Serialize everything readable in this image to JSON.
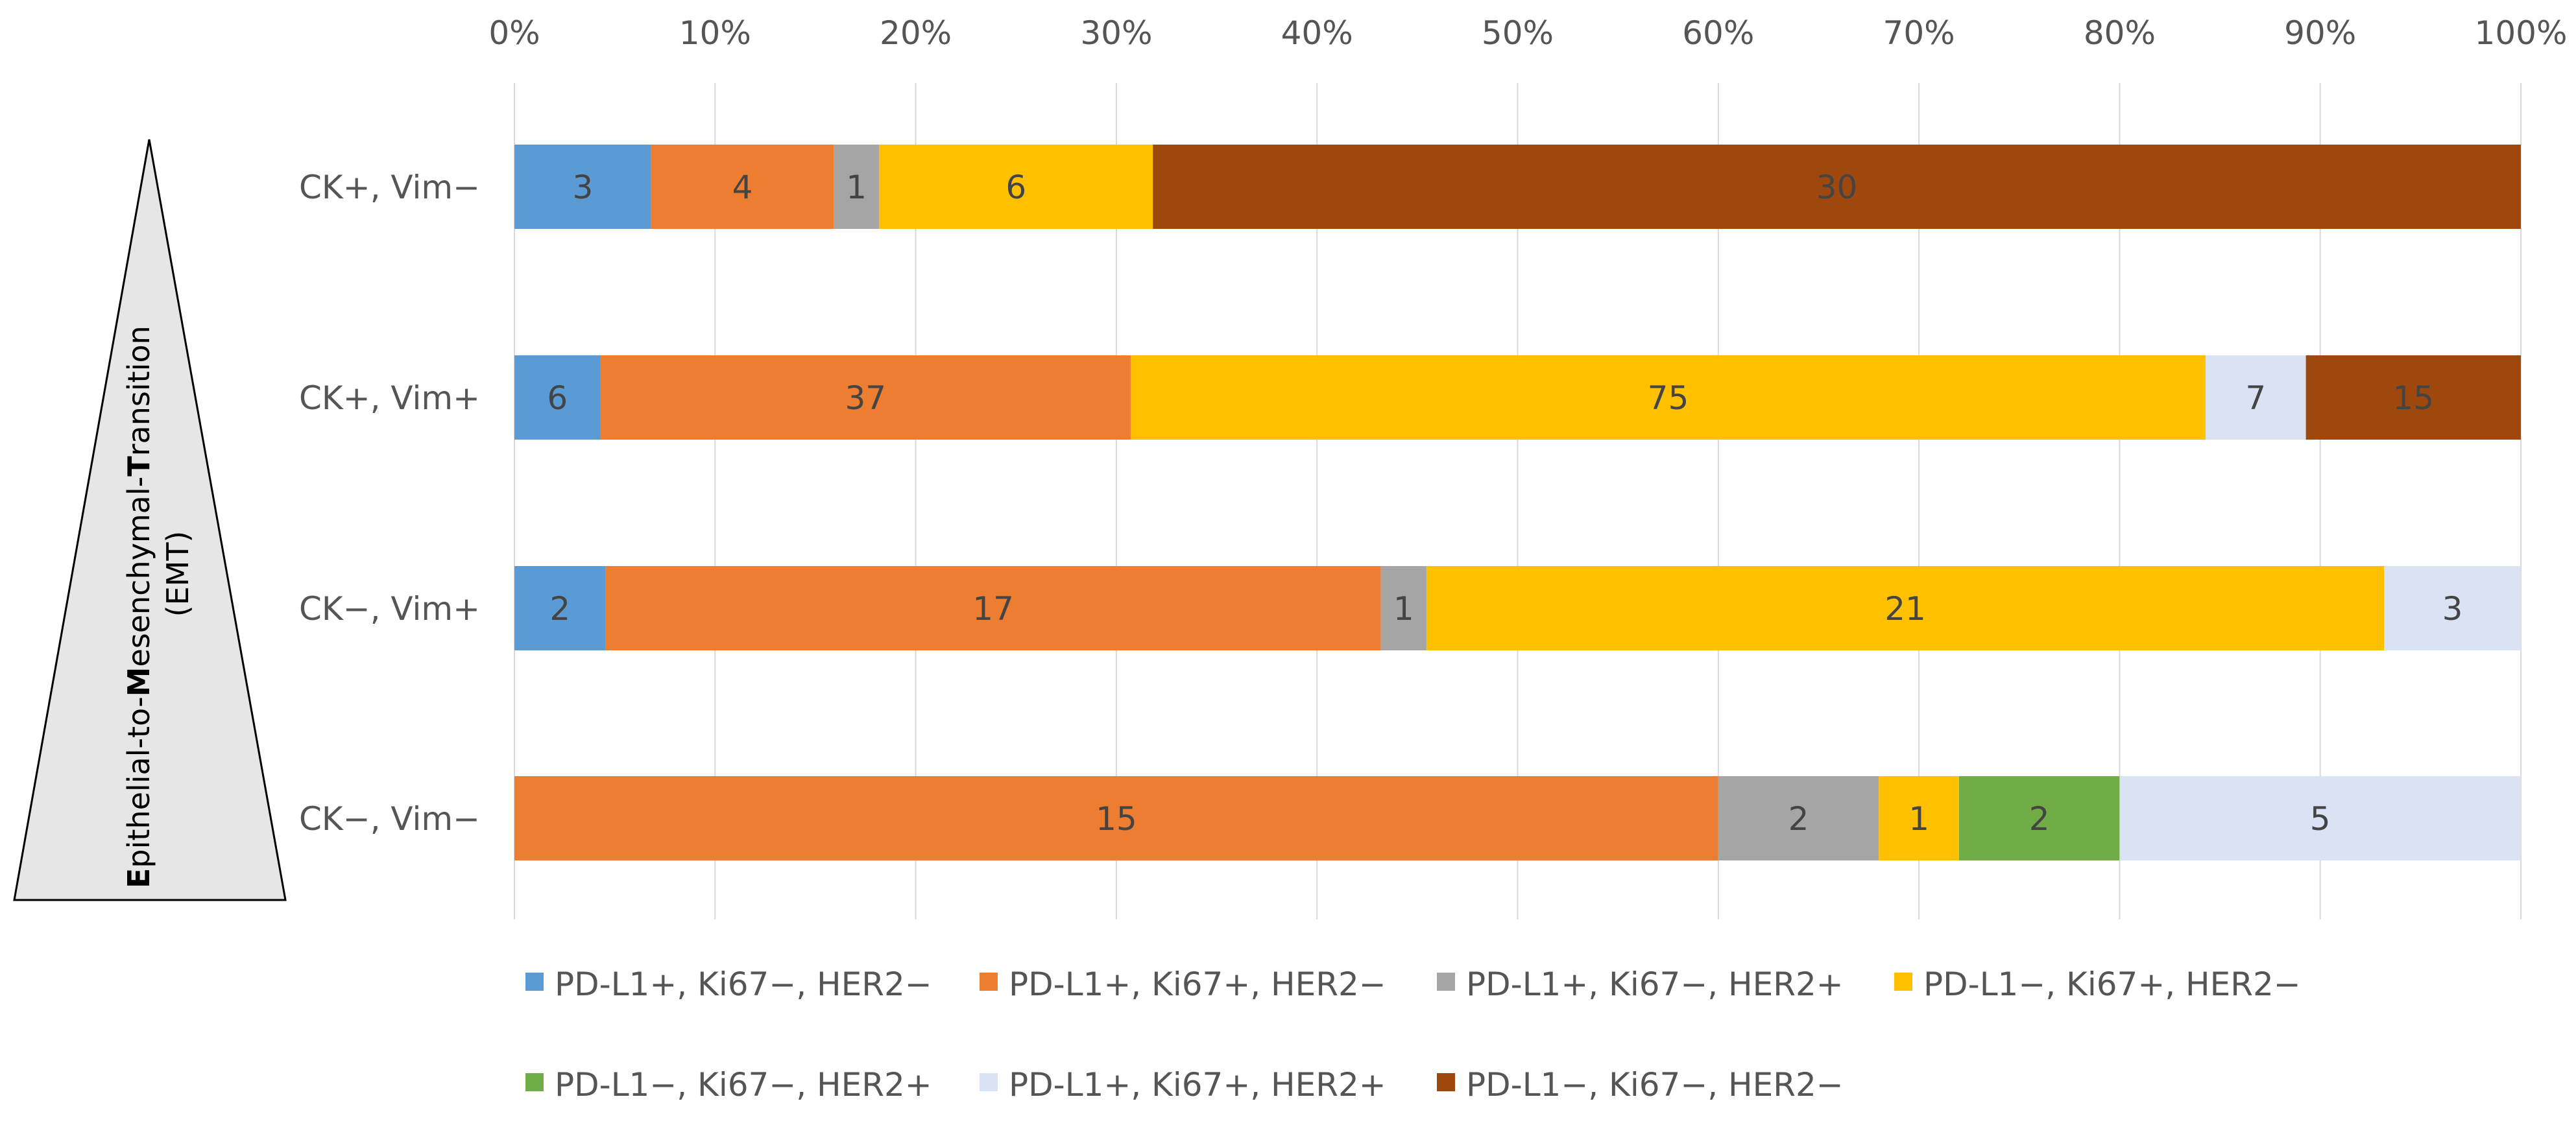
{
  "chart_data": {
    "type": "bar",
    "orientation": "horizontal",
    "stacking": "percent",
    "xlim": [
      0,
      100
    ],
    "x_ticks": [
      "0%",
      "10%",
      "20%",
      "30%",
      "40%",
      "50%",
      "60%",
      "70%",
      "80%",
      "90%",
      "100%"
    ],
    "categories": [
      "CK+, Vim−",
      "CK+, Vim+",
      "CK−, Vim+",
      "CK−, Vim−"
    ],
    "series": [
      {
        "name": "PD-L1+, Ki67−, HER2−",
        "color": "#5B9BD5",
        "values": [
          3,
          6,
          2,
          0
        ]
      },
      {
        "name": "PD-L1+, Ki67+, HER2−",
        "color": "#ED7D31",
        "values": [
          4,
          37,
          17,
          15
        ]
      },
      {
        "name": "PD-L1+, Ki67−, HER2+",
        "color": "#A5A5A5",
        "values": [
          1,
          0,
          1,
          2
        ]
      },
      {
        "name": "PD-L1−, Ki67+, HER2−",
        "color": "#FFC000",
        "values": [
          6,
          75,
          21,
          1
        ]
      },
      {
        "name": "PD-L1−, Ki67−, HER2+",
        "color": "#70AD47",
        "values": [
          0,
          0,
          0,
          2
        ]
      },
      {
        "name": "PD-L1+, Ki67+, HER2+",
        "color": "#DAE3F3",
        "values": [
          0,
          7,
          3,
          5
        ]
      },
      {
        "name": "PD-L1−, Ki67−, HER2−",
        "color": "#9E480E",
        "values": [
          30,
          15,
          0,
          0
        ]
      }
    ],
    "grid": true,
    "legend_position": "bottom",
    "side_annotation": {
      "title_parts": [
        {
          "text": "E",
          "bold": true
        },
        {
          "text": "pithelial-to-",
          "bold": false
        },
        {
          "text": "M",
          "bold": true
        },
        {
          "text": "esenchymal-",
          "bold": false
        },
        {
          "text": "T",
          "bold": true
        },
        {
          "text": "ransition",
          "bold": false
        }
      ],
      "subtitle": "(EMT)",
      "fill_color": "#E7E6E6"
    }
  }
}
